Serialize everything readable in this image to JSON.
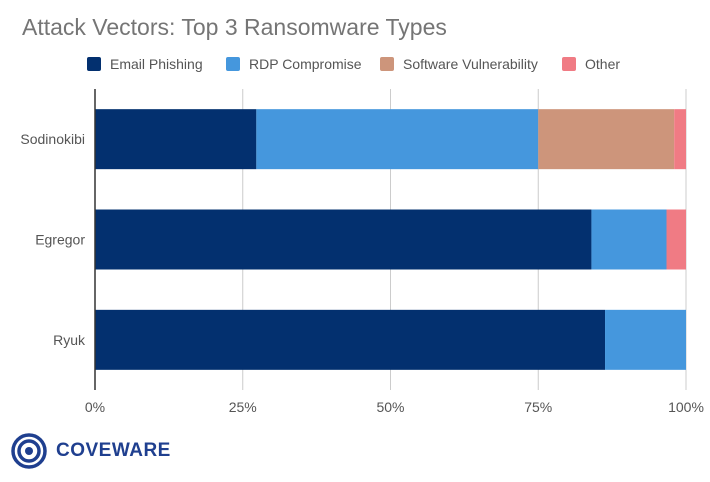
{
  "chart_data": {
    "type": "bar",
    "orientation": "horizontal",
    "stacked": true,
    "title": "Attack Vectors: Top 3 Ransomware Types",
    "categories": [
      "Sodinokibi",
      "Egregor",
      "Ryuk"
    ],
    "series": [
      {
        "name": "Email Phishing",
        "color": "#03306f",
        "values": [
          27.3,
          84.0,
          86.3
        ]
      },
      {
        "name": "RDP Compromise",
        "color": "#4597dd",
        "values": [
          47.7,
          12.7,
          13.7
        ]
      },
      {
        "name": "Software Vulnerability",
        "color": "#cd957b",
        "values": [
          23.0,
          0.0,
          0.0
        ]
      },
      {
        "name": "Other",
        "color": "#f07b84",
        "values": [
          2.0,
          3.3,
          0.0
        ]
      }
    ],
    "xlim": [
      0,
      100
    ],
    "x_ticks": [
      "0%",
      "25%",
      "50%",
      "75%",
      "100%"
    ],
    "x_tick_values": [
      0,
      25,
      50,
      75,
      100
    ],
    "grid": true,
    "legend_position": "top"
  },
  "logo": {
    "text": "COVEWARE",
    "color": "#1f3f8f"
  }
}
